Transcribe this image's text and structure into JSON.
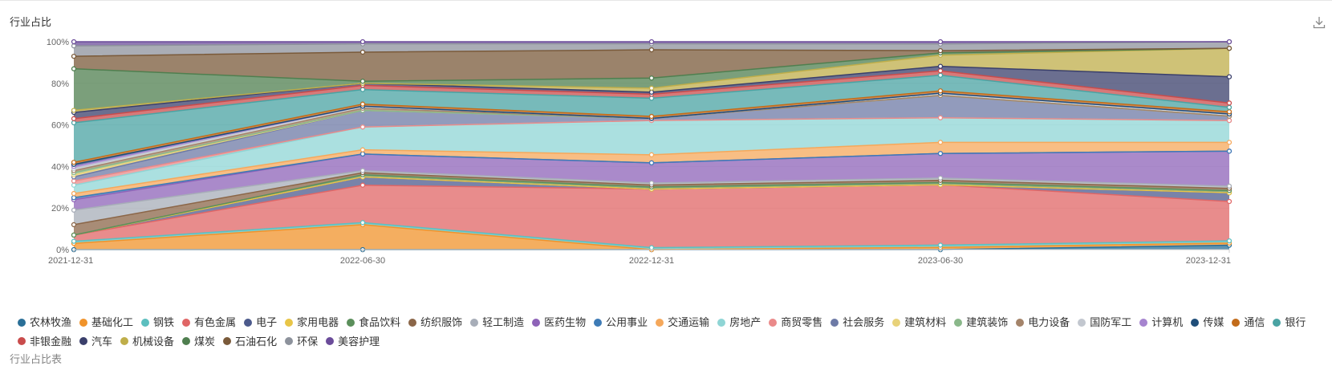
{
  "title": "行业占比",
  "download_icon": "download-icon",
  "chart_data": {
    "type": "area",
    "stacked": true,
    "normalized": true,
    "x": [
      "2021-12-31",
      "2022-06-30",
      "2022-12-31",
      "2023-06-30",
      "2023-12-31"
    ],
    "y_ticks": [
      "0%",
      "20%",
      "40%",
      "60%",
      "80%",
      "100%"
    ],
    "ylim": [
      0,
      100
    ],
    "legend_position": "bottom",
    "series": [
      {
        "name": "农林牧渔",
        "color": "#2a6f97",
        "values": [
          0,
          0,
          0,
          0,
          2
        ]
      },
      {
        "name": "基础化工",
        "color": "#f0932b",
        "values": [
          3,
          12,
          0,
          1,
          1
        ]
      },
      {
        "name": "钢铁",
        "color": "#5cbfbf",
        "values": [
          1,
          1,
          1,
          1,
          1
        ]
      },
      {
        "name": "有色金属",
        "color": "#e06666",
        "values": [
          3,
          18,
          29,
          27,
          18
        ]
      },
      {
        "name": "电子",
        "color": "#4c5a8c",
        "values": [
          0,
          4,
          0,
          0,
          4
        ]
      },
      {
        "name": "家用电器",
        "color": "#e8c547",
        "values": [
          0,
          0,
          0,
          0,
          0
        ]
      },
      {
        "name": "食品饮料",
        "color": "#5b8f5b",
        "values": [
          0,
          1,
          1,
          1,
          1
        ]
      },
      {
        "name": "纺织服饰",
        "color": "#8b6648",
        "values": [
          5,
          1,
          1,
          1,
          1
        ]
      },
      {
        "name": "轻工制造",
        "color": "#a7adb8",
        "values": [
          7,
          1,
          1,
          1,
          1
        ]
      },
      {
        "name": "医药生物",
        "color": "#8e63b8",
        "values": [
          5,
          8,
          10,
          11,
          16
        ]
      },
      {
        "name": "公用事业",
        "color": "#3e7bb6",
        "values": [
          1,
          0,
          0,
          0,
          0
        ]
      },
      {
        "name": "交通运输",
        "color": "#f5a85b",
        "values": [
          2,
          2,
          4,
          5,
          4
        ]
      },
      {
        "name": "房地产",
        "color": "#8fd5d5",
        "values": [
          4,
          11,
          17,
          11,
          10
        ]
      },
      {
        "name": "商贸零售",
        "color": "#ea8a8a",
        "values": [
          2,
          0,
          0,
          0,
          0
        ]
      },
      {
        "name": "社会服务",
        "color": "#6d7aa6",
        "values": [
          2,
          8,
          1,
          10,
          2
        ]
      },
      {
        "name": "建筑材料",
        "color": "#e8d27a",
        "values": [
          1,
          0,
          0,
          0,
          0
        ]
      },
      {
        "name": "建筑装饰",
        "color": "#8ab88a",
        "values": [
          1,
          0,
          0,
          0,
          0
        ]
      },
      {
        "name": "电力设备",
        "color": "#a4846a",
        "values": [
          1,
          1,
          0,
          0,
          0
        ]
      },
      {
        "name": "国防军工",
        "color": "#c2c7cf",
        "values": [
          1,
          1,
          0,
          1,
          1
        ]
      },
      {
        "name": "计算机",
        "color": "#a684cf",
        "values": [
          1,
          0,
          0,
          0,
          0
        ]
      },
      {
        "name": "传媒",
        "color": "#1f4e79",
        "values": [
          1,
          0,
          0,
          0,
          0
        ]
      },
      {
        "name": "通信",
        "color": "#c26b1a",
        "values": [
          1,
          1,
          1,
          1,
          1
        ]
      },
      {
        "name": "银行",
        "color": "#4aa3a3",
        "values": [
          19,
          7,
          9,
          7,
          2
        ]
      },
      {
        "name": "非银金融",
        "color": "#c94c4c",
        "values": [
          2,
          2,
          2,
          2,
          2
        ]
      },
      {
        "name": "汽车",
        "color": "#3a3f6b",
        "values": [
          3,
          1,
          1,
          2,
          12
        ]
      },
      {
        "name": "机械设备",
        "color": "#bfae4a",
        "values": [
          1,
          0,
          2,
          5,
          13
        ]
      },
      {
        "name": "煤炭",
        "color": "#4f7f4f",
        "values": [
          20,
          1,
          5,
          1,
          0
        ]
      },
      {
        "name": "石油石化",
        "color": "#7a5a3a",
        "values": [
          6,
          14,
          14,
          1,
          0
        ]
      },
      {
        "name": "环保",
        "color": "#8d929c",
        "values": [
          5,
          4,
          3,
          3,
          3
        ]
      },
      {
        "name": "美容护理",
        "color": "#6b4c9a",
        "values": [
          2,
          1,
          1,
          1,
          0
        ]
      }
    ]
  },
  "cut_label": "行业占比表"
}
